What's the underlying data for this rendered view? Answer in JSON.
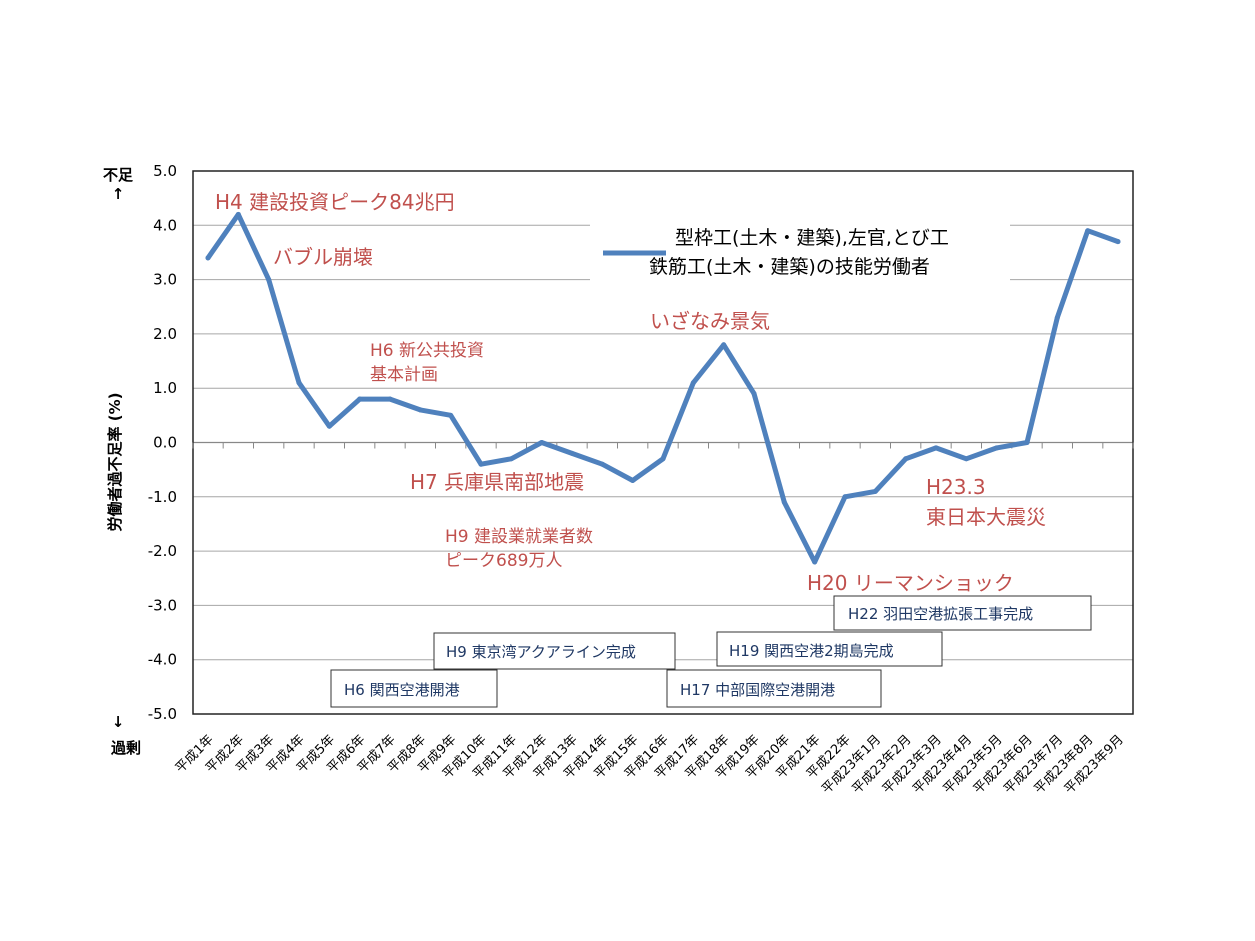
{
  "chart_data": {
    "type": "line",
    "ylabel": "労働者過不足率 (%)",
    "ylim": [
      -5.0,
      5.0
    ],
    "yticks": [
      "5.0",
      "4.0",
      "3.0",
      "2.0",
      "1.0",
      "0.0",
      "-1.0",
      "-2.0",
      "-3.0",
      "-4.0",
      "-5.0"
    ],
    "grid": true,
    "legend_position": "top-right",
    "top_label": {
      "line1": "不足",
      "line2": "↑"
    },
    "bottom_label": {
      "line1": "↓",
      "line2": "過剰"
    },
    "categories": [
      "平成1年",
      "平成2年",
      "平成3年",
      "平成4年",
      "平成5年",
      "平成6年",
      "平成7年",
      "平成8年",
      "平成9年",
      "平成10年",
      "平成11年",
      "平成12年",
      "平成13年",
      "平成14年",
      "平成15年",
      "平成16年",
      "平成17年",
      "平成18年",
      "平成19年",
      "平成20年",
      "平成21年",
      "平成22年",
      "平成23年1月",
      "平成23年2月",
      "平成23年3月",
      "平成23年4月",
      "平成23年5月",
      "平成23年6月",
      "平成23年7月",
      "平成23年8月",
      "平成23年9月"
    ],
    "series": [
      {
        "name_line1": "型枠工(土木・建築),左官,とび工",
        "name_line2": "鉄筋工(土木・建築)の技能労働者",
        "color": "#4f81bd",
        "values": [
          3.4,
          4.2,
          3.0,
          1.1,
          0.3,
          0.8,
          0.8,
          0.6,
          0.5,
          -0.4,
          -0.3,
          0.0,
          -0.2,
          -0.4,
          -0.7,
          -0.3,
          1.1,
          1.8,
          0.9,
          -1.1,
          -2.2,
          -1.0,
          -0.9,
          -0.3,
          -0.1,
          -0.3,
          -0.1,
          0.0,
          2.3,
          3.9,
          3.7
        ]
      }
    ],
    "annotations_red": [
      {
        "text": "H4 建設投資ピーク84兆円"
      },
      {
        "text": "バブル崩壊"
      },
      {
        "text": "H6 新公共投資"
      },
      {
        "text": "基本計画"
      },
      {
        "text": "H7 兵庫県南部地震"
      },
      {
        "text": "H9 建設業就業者数"
      },
      {
        "text": "ピーク689万人"
      },
      {
        "text": "いざなみ景気"
      },
      {
        "text": "H20 リーマンショック"
      },
      {
        "text": "H23.3"
      },
      {
        "text": "東日本大震災"
      }
    ],
    "annotations_boxed": [
      {
        "text": "H6 関西空港開港"
      },
      {
        "text": "H9 東京湾アクアライン完成"
      },
      {
        "text": "H17 中部国際空港開港"
      },
      {
        "text": "H19 関西空港2期島完成"
      },
      {
        "text": "H22 羽田空港拡張工事完成"
      }
    ]
  }
}
